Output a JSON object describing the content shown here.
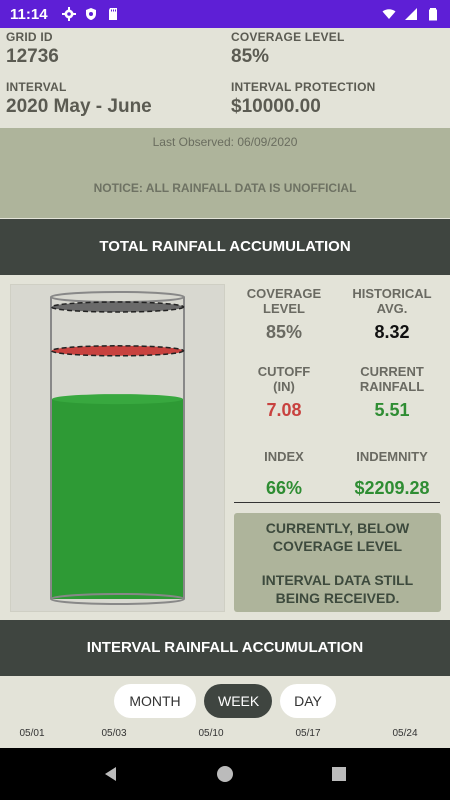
{
  "status_bar": {
    "time": "11:14"
  },
  "info": {
    "grid_id_label": "GRID ID",
    "grid_id_value": "12736",
    "coverage_label": "COVERAGE LEVEL",
    "coverage_value": "85%",
    "interval_label": "INTERVAL",
    "interval_value": "2020 May - June",
    "protection_label": "INTERVAL PROTECTION",
    "protection_value": "$10000.00"
  },
  "observed_text": "Last Observed: 06/09/2020",
  "notice_text": "NOTICE: ALL RAINFALL DATA IS UNOFFICIAL",
  "total_header": "TOTAL RAINFALL ACCUMULATION",
  "gauge": {
    "fill_fraction": 0.662,
    "historical_line_fraction": 1.0,
    "cutoff_line_fraction": 0.85,
    "colors": {
      "fill": "#2e9a35",
      "historical": "#6a6a6a",
      "cutoff": "#c8423f"
    }
  },
  "stats": {
    "coverage_label_1": "COVERAGE",
    "coverage_label_2": "LEVEL",
    "coverage_value": "85%",
    "historical_label_1": "HISTORICAL",
    "historical_label_2": "AVG.",
    "historical_value": "8.32",
    "cutoff_label_1": "CUTOFF",
    "cutoff_label_2": "(IN)",
    "cutoff_value": "7.08",
    "current_label_1": "CURRENT",
    "current_label_2": "RAINFALL",
    "current_value": "5.51",
    "index_label": "INDEX",
    "index_value": "66%",
    "indemnity_label": "INDEMNITY",
    "indemnity_value": "$2209.28"
  },
  "status_box": {
    "line1a": "CURRENTLY, BELOW",
    "line1b": "COVERAGE LEVEL",
    "line2a": "INTERVAL DATA STILL",
    "line2b": "BEING RECEIVED."
  },
  "interval_header": "INTERVAL RAINFALL ACCUMULATION",
  "segments": {
    "month": "MONTH",
    "week": "WEEK",
    "day": "DAY",
    "selected": "WEEK"
  },
  "dates": [
    "05/01",
    "05/03",
    "05/10",
    "05/17",
    "05/24"
  ]
}
